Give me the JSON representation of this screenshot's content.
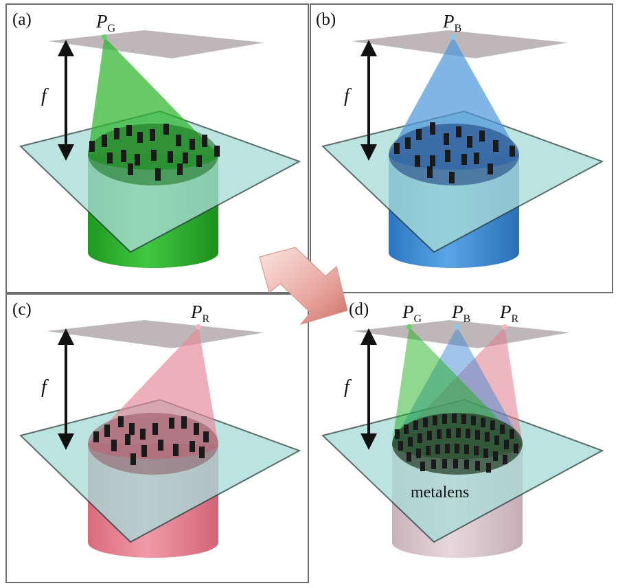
{
  "panels": [
    {
      "id": "a",
      "label": "(a)",
      "focal_label": "f",
      "points": [
        {
          "main": "P",
          "sub": "G"
        }
      ],
      "beam_colors": [
        "#22b022"
      ]
    },
    {
      "id": "b",
      "label": "(b)",
      "focal_label": "f",
      "points": [
        {
          "main": "P",
          "sub": "B"
        }
      ],
      "beam_colors": [
        "#3a86d0"
      ]
    },
    {
      "id": "c",
      "label": "(c)",
      "focal_label": "f",
      "points": [
        {
          "main": "P",
          "sub": "R"
        }
      ],
      "beam_colors": [
        "#e07b8c"
      ]
    },
    {
      "id": "d",
      "label": "(d)",
      "focal_label": "f",
      "points": [
        {
          "main": "P",
          "sub": "G"
        },
        {
          "main": "P",
          "sub": "B"
        },
        {
          "main": "P",
          "sub": "R"
        }
      ],
      "beam_colors": [
        "#22b022",
        "#3a86d0",
        "#e07b8c"
      ],
      "caption": "metalens"
    }
  ],
  "colors": {
    "green": "#22b022",
    "blue": "#3a86d0",
    "red": "#e07b8c",
    "glass": "#a9dcd7",
    "focal_plane": "#b7afb1",
    "arrow": "#e8a7a0",
    "frame": "#6d6d6d"
  }
}
